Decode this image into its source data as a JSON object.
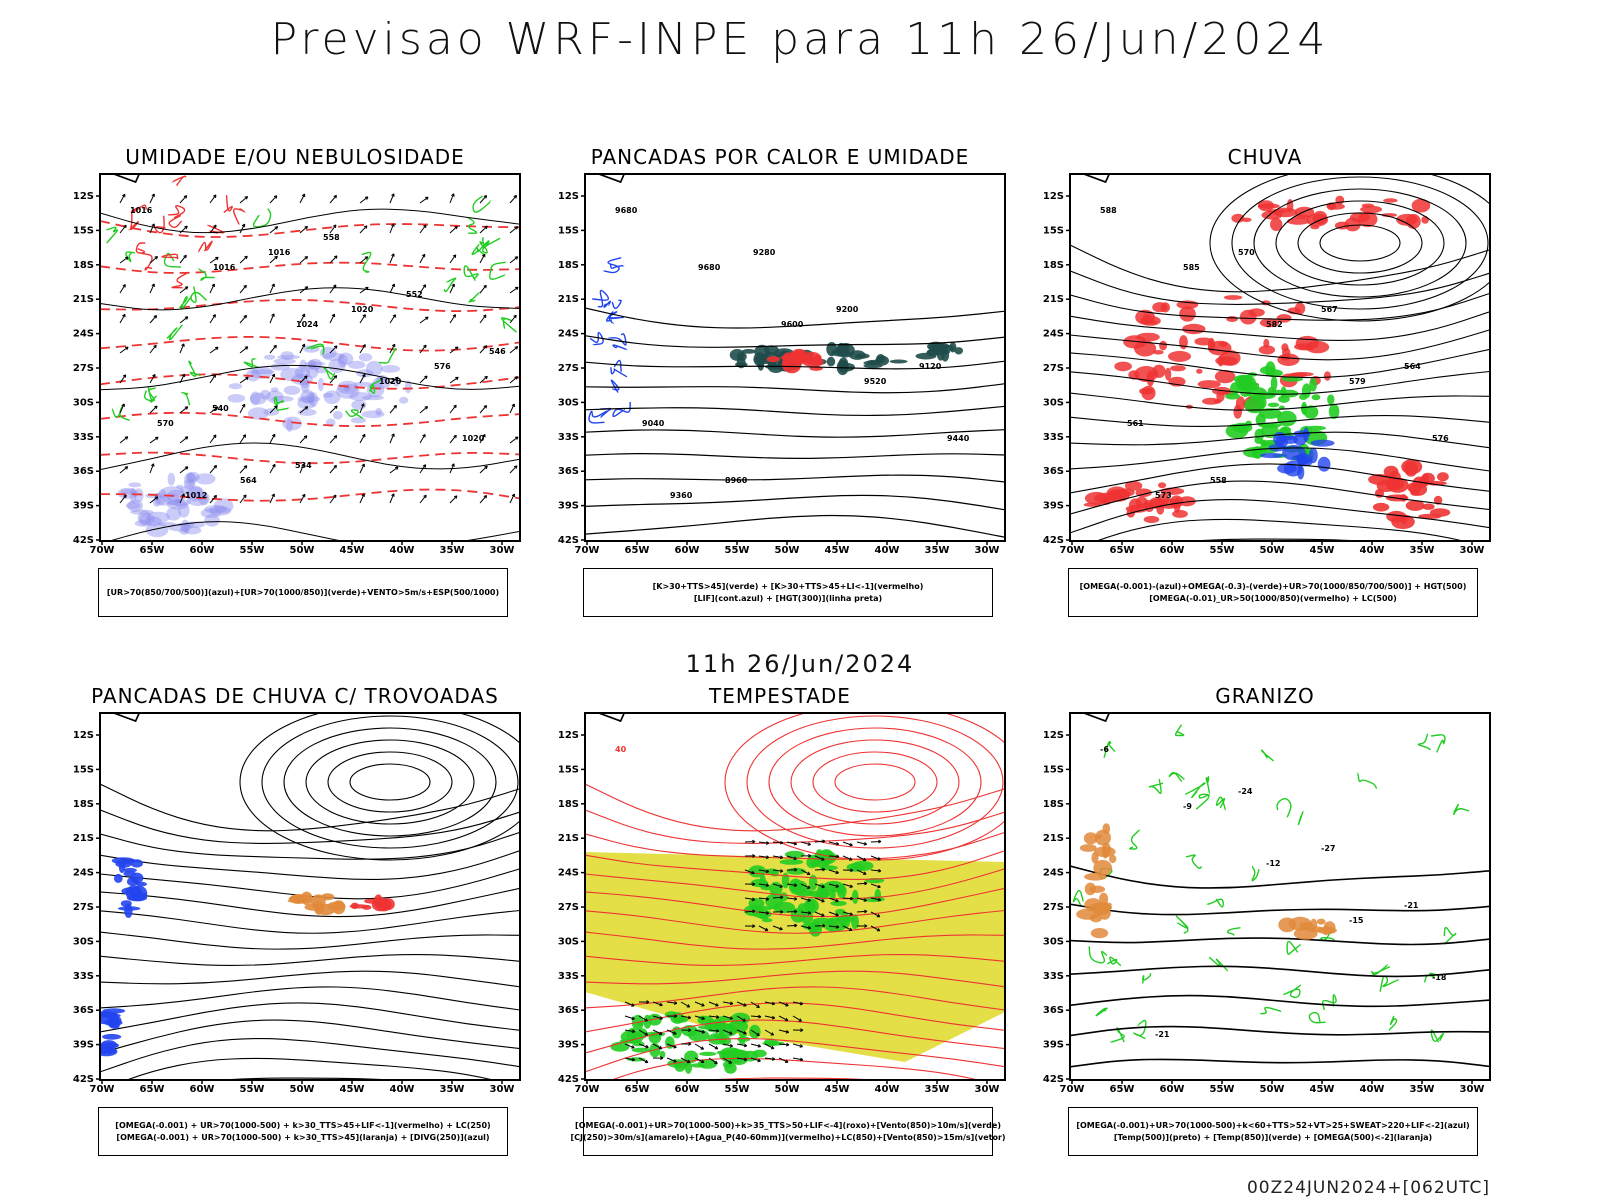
{
  "page": {
    "main_title": "Previsao WRF-INPE  para 11h 26/Jun/2024",
    "mid_title": "11h 26/Jun/2024",
    "footer_stamp": "00Z24JUN2024+[062UTC]"
  },
  "axes": {
    "lat_labels": [
      "12S",
      "15S",
      "18S",
      "21S",
      "24S",
      "27S",
      "30S",
      "33S",
      "36S",
      "39S",
      "42S"
    ],
    "lon_labels": [
      "70W",
      "65W",
      "60W",
      "55W",
      "50W",
      "45W",
      "40W",
      "35W",
      "30W"
    ]
  },
  "colors": {
    "purple_shade": "#8d8df0",
    "green_contour": "#22cc22",
    "red_contour": "#ee3333",
    "blue_contour": "#2244ee",
    "dark_teal": "#1f4d4a",
    "yellow_shade": "#e3dd3c",
    "orange_dots": "#e08a3a"
  },
  "panels": [
    {
      "title": "UMIDADE E/OU NEBULOSIDADE",
      "legend": [
        "[UR>70(850/700/500)](azul)+[UR>70(1000/850)](verde)+VENTO>5m/s+ESP(500/1000)"
      ],
      "contour_labels": [
        "1016",
        "1016",
        "1024",
        "1020",
        "1020",
        "1012",
        "1016",
        "1020",
        "576",
        "570",
        "564",
        "558",
        "552",
        "546",
        "540",
        "534"
      ]
    },
    {
      "title": "PANCADAS POR CALOR E UMIDADE",
      "legend": [
        "[K>30+TTS>45](verde) + [K>30+TTS>45+LI<-1](vermelho)",
        "[LIF](cont.azul) + [HGT(300)](linha preta)"
      ],
      "contour_labels": [
        "9680",
        "9680",
        "9600",
        "9520",
        "9440",
        "9360",
        "9280",
        "9200",
        "9120",
        "9040",
        "8960"
      ]
    },
    {
      "title": "CHUVA",
      "legend": [
        "[OMEGA(-0.001)-(azul)+OMEGA(-0.3)-(verde)+UR>70(1000/850/700/500)] + HGT(500)",
        "[OMEGA(-0.01)_UR>50(1000/850)(vermelho) + LC(500)"
      ],
      "contour_labels": [
        "588",
        "585",
        "582",
        "579",
        "576",
        "573",
        "570",
        "567",
        "564",
        "561",
        "558"
      ]
    },
    {
      "title": "PANCADAS DE CHUVA C/ TROVOADAS",
      "legend": [
        "[OMEGA(-0.001) + UR>70(1000-500) + k>30_TTS>45+LIF<-1](vermelho) + LC(250)",
        "[OMEGA(-0.001) + UR>70(1000-500) + k>30_TTS>45](laranja) + [DIVG(250)](azul)"
      ],
      "contour_labels": []
    },
    {
      "title": "TEMPESTADE",
      "legend": [
        "[OMEGA(-0.001)+UR>70(1000-500)+k>35_TTS>50+LIF<-4](roxo)+[Vento(850)>10m/s](verde)",
        "[CJ(250)>30m/s](amarelo)+[Agua_P(40-60mm)](vermelho)+LC(850)+[Vento(850)>15m/s](vetor)"
      ],
      "contour_labels": [
        "40"
      ]
    },
    {
      "title": "GRANIZO",
      "legend": [
        "[OMEGA(-0.001)+UR>70(1000-500)+k<60+TTS>52+VT>25+SWEAT>220+LIF<-2](azul)",
        "[Temp(500)](preto) + [Temp(850)](verde) + [OMEGA(500)<-2](laranja)"
      ],
      "contour_labels": [
        "-6",
        "-9",
        "-12",
        "-15",
        "-18",
        "-21",
        "-24",
        "-27",
        "-21"
      ]
    }
  ]
}
